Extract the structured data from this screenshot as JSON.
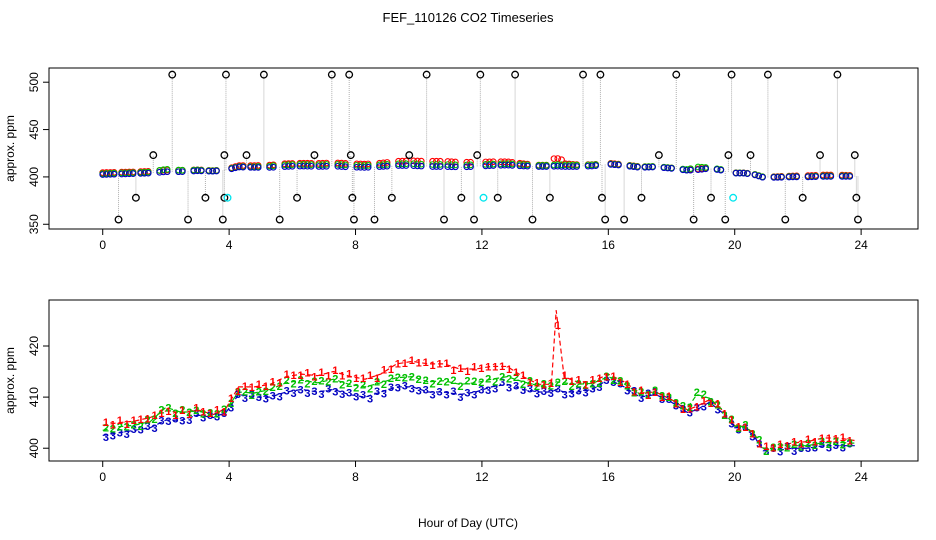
{
  "chart_data": [
    {
      "type": "scatter",
      "title": "FEF_110126  CO2 Timeseries",
      "xlabel": "",
      "ylabel": "approx. ppm",
      "xlim": [
        -1.7,
        25.8
      ],
      "ylim": [
        345,
        515
      ],
      "x_ticks": [
        0,
        4,
        8,
        12,
        16,
        20,
        24
      ],
      "y_ticks": [
        350,
        400,
        450,
        500
      ],
      "marker": "circle",
      "grey_connector_lines": true,
      "calibration_points": [
        {
          "x": 0.5,
          "y": 355
        },
        {
          "x": 1.05,
          "y": 378
        },
        {
          "x": 1.6,
          "y": 423
        },
        {
          "x": 2.2,
          "y": 508
        },
        {
          "x": 2.7,
          "y": 355
        },
        {
          "x": 3.25,
          "y": 378
        },
        {
          "x": 3.8,
          "y": 355
        },
        {
          "x": 3.85,
          "y": 423
        },
        {
          "x": 3.9,
          "y": 508
        },
        {
          "x": 3.85,
          "y": 378
        },
        {
          "x": 4.55,
          "y": 423
        },
        {
          "x": 5.1,
          "y": 508
        },
        {
          "x": 5.6,
          "y": 355
        },
        {
          "x": 6.15,
          "y": 378
        },
        {
          "x": 6.7,
          "y": 423
        },
        {
          "x": 7.25,
          "y": 508
        },
        {
          "x": 7.8,
          "y": 508
        },
        {
          "x": 7.85,
          "y": 423
        },
        {
          "x": 7.9,
          "y": 378
        },
        {
          "x": 7.95,
          "y": 355
        },
        {
          "x": 8.6,
          "y": 355
        },
        {
          "x": 9.15,
          "y": 378
        },
        {
          "x": 9.7,
          "y": 423
        },
        {
          "x": 10.25,
          "y": 508
        },
        {
          "x": 10.8,
          "y": 355
        },
        {
          "x": 11.35,
          "y": 378
        },
        {
          "x": 11.75,
          "y": 355
        },
        {
          "x": 11.85,
          "y": 423
        },
        {
          "x": 11.95,
          "y": 508
        },
        {
          "x": 12.5,
          "y": 378
        },
        {
          "x": 13.05,
          "y": 508
        },
        {
          "x": 13.6,
          "y": 355
        },
        {
          "x": 14.15,
          "y": 378
        },
        {
          "x": 15.2,
          "y": 508
        },
        {
          "x": 15.75,
          "y": 508
        },
        {
          "x": 15.8,
          "y": 378
        },
        {
          "x": 15.9,
          "y": 355
        },
        {
          "x": 16.5,
          "y": 355
        },
        {
          "x": 17.05,
          "y": 378
        },
        {
          "x": 17.6,
          "y": 423
        },
        {
          "x": 18.15,
          "y": 508
        },
        {
          "x": 18.7,
          "y": 355
        },
        {
          "x": 19.25,
          "y": 378
        },
        {
          "x": 19.7,
          "y": 355
        },
        {
          "x": 19.8,
          "y": 423
        },
        {
          "x": 19.9,
          "y": 508
        },
        {
          "x": 20.5,
          "y": 423
        },
        {
          "x": 21.05,
          "y": 508
        },
        {
          "x": 21.6,
          "y": 355
        },
        {
          "x": 22.15,
          "y": 378
        },
        {
          "x": 22.7,
          "y": 423
        },
        {
          "x": 23.25,
          "y": 508
        },
        {
          "x": 23.8,
          "y": 423
        },
        {
          "x": 23.85,
          "y": 378
        },
        {
          "x": 23.9,
          "y": 355
        }
      ],
      "cyan_points": [
        {
          "x": 3.95,
          "y": 378
        },
        {
          "x": 12.05,
          "y": 378
        },
        {
          "x": 19.95,
          "y": 378
        }
      ]
    },
    {
      "type": "line",
      "title": "",
      "xlabel": "Hour of Day (UTC)",
      "ylabel": "approx. ppm",
      "xlim": [
        -1.7,
        25.8
      ],
      "ylim": [
        397.5,
        429
      ],
      "x_ticks": [
        0,
        4,
        8,
        12,
        16,
        20,
        24
      ],
      "y_ticks": [
        400,
        410,
        420
      ],
      "profile_x": [
        0.0,
        0.5,
        1.0,
        1.5,
        2.0,
        2.5,
        3.0,
        3.5,
        3.9,
        4.3,
        4.8,
        5.3,
        5.8,
        6.3,
        6.8,
        7.3,
        7.8,
        8.3,
        8.8,
        9.3,
        9.8,
        10.3,
        10.8,
        11.3,
        11.8,
        12.3,
        12.8,
        13.3,
        13.8,
        14.2,
        14.35,
        14.6,
        15.0,
        15.5,
        16.0,
        16.5,
        17.0,
        17.5,
        18.0,
        18.5,
        18.8,
        19.2,
        19.6,
        20.0,
        20.3,
        20.6,
        20.9,
        21.3,
        21.8,
        22.3,
        22.8,
        23.3,
        23.8
      ],
      "series": [
        {
          "name": "1",
          "color": "#ff0000",
          "offsets": [
            2.0,
            2.0,
            1.8,
            2.0,
            1.8,
            1.5,
            1.0,
            0.6,
            0.8,
            1.5,
            2.0,
            2.5,
            3.0,
            3.0,
            3.2,
            3.5,
            3.6,
            3.5,
            3.5,
            4.5,
            5.0,
            5.5,
            5.5,
            5.0,
            4.5,
            4.0,
            3.5,
            2.5,
            1.5,
            1.5,
            15.5,
            3.0,
            2.0,
            1.5,
            1.0,
            1.0,
            0.8,
            0.5,
            0.5,
            0.5,
            0.7,
            0.5,
            0.5,
            0.4,
            0.3,
            0.5,
            0.5,
            0.8,
            1.0,
            1.3,
            1.5,
            1.5,
            1.0
          ]
        },
        {
          "name": "2",
          "color": "#00c000",
          "offsets": [
            1.0,
            1.2,
            1.0,
            1.2,
            2.5,
            1.5,
            0.8,
            0.5,
            0.6,
            0.5,
            0.8,
            1.5,
            1.8,
            1.8,
            1.8,
            2.0,
            2.0,
            2.0,
            1.8,
            1.8,
            2.0,
            2.0,
            2.2,
            2.0,
            1.8,
            1.5,
            1.5,
            1.5,
            1.2,
            1.2,
            1.5,
            1.8,
            1.5,
            1.2,
            0.5,
            0.6,
            0.6,
            0.6,
            0.5,
            0.8,
            3.0,
            0.8,
            0.6,
            0.3,
            0.2,
            0.4,
            0.5,
            0.4,
            0.5,
            0.5,
            0.6,
            0.6,
            0.5
          ]
        }
      ],
      "baseline_series": {
        "name": "3",
        "color": "#0000c0",
        "values": [
          402.5,
          403.0,
          403.5,
          404.0,
          405.5,
          405.5,
          406.5,
          406.0,
          407.0,
          410.5,
          410.0,
          410.0,
          411.0,
          411.5,
          411.0,
          411.5,
          410.5,
          410.0,
          411.0,
          412.0,
          412.0,
          411.0,
          411.0,
          410.5,
          411.0,
          412.0,
          412.5,
          411.5,
          411.0,
          411.0,
          411.5,
          411.0,
          411.0,
          411.5,
          413.5,
          412.0,
          410.0,
          410.5,
          409.0,
          407.0,
          407.5,
          409.0,
          407.0,
          404.0,
          404.0,
          402.5,
          399.5,
          399.5,
          400.0,
          400.0,
          400.5,
          400.5,
          400.5
        ]
      }
    }
  ]
}
